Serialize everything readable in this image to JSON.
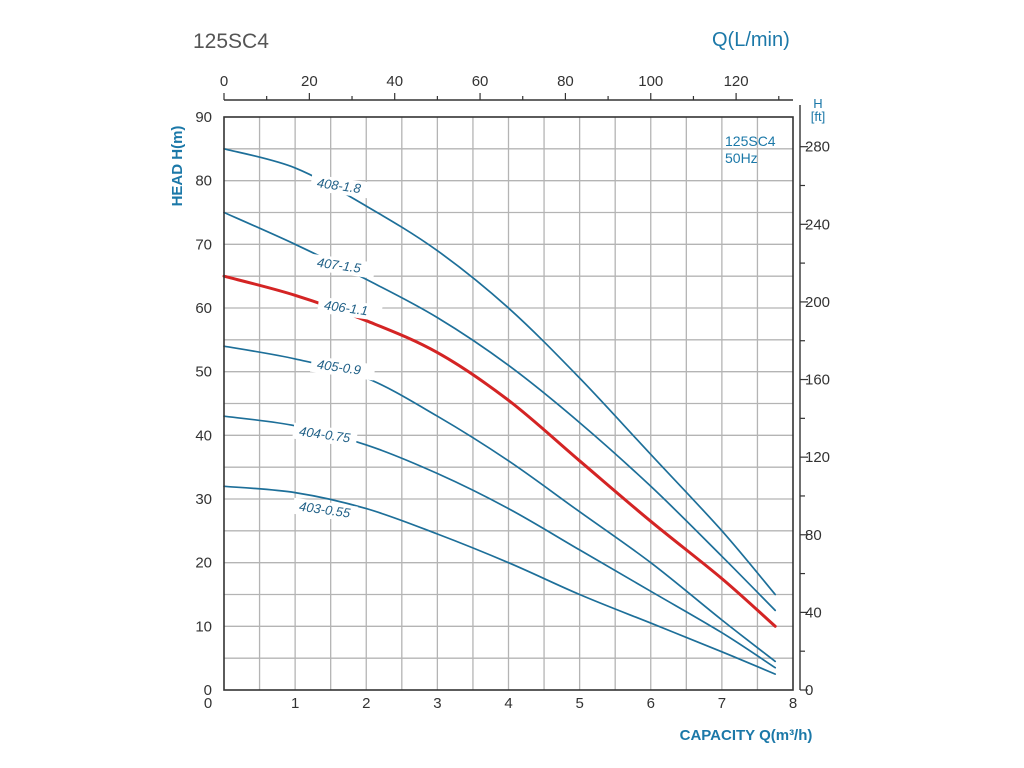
{
  "chart_data": {
    "type": "line",
    "title": "125SC4",
    "top_axis_label": "Q(L/min)",
    "top_ticks": [
      "0",
      "20",
      "40",
      "60",
      "80",
      "100",
      "120"
    ],
    "top_range": [
      0,
      133.33
    ],
    "left_axis_label": "HEAD H(m)",
    "left_ticks": [
      "0",
      "10",
      "20",
      "30",
      "40",
      "50",
      "60",
      "70",
      "80",
      "90"
    ],
    "ylim": [
      0,
      90
    ],
    "right_axis_label_line1": "H",
    "right_axis_label_line2": "[ft]",
    "right_ticks": [
      "0",
      "40",
      "80",
      "120",
      "160",
      "200",
      "240",
      "280"
    ],
    "right_range_ft": [
      0,
      295.3
    ],
    "xlabel": "CAPACITY Q(m³/h)",
    "x_ticks": [
      "0",
      "1",
      "2",
      "3",
      "4",
      "5",
      "6",
      "7",
      "8"
    ],
    "xlim": [
      0,
      8
    ],
    "inset_line1": "125SC4",
    "inset_line2": "50Hz",
    "grid": true,
    "series": [
      {
        "name": "403-0.55",
        "color": "#1d6f99",
        "x": [
          0,
          1,
          2,
          3,
          4,
          5,
          6,
          7,
          7.75
        ],
        "y": [
          32,
          31,
          28.5,
          24.5,
          20,
          15,
          10.5,
          6,
          2.5
        ]
      },
      {
        "name": "404-0.75",
        "color": "#1d6f99",
        "x": [
          0,
          1,
          2,
          3,
          4,
          5,
          6,
          7,
          7.75
        ],
        "y": [
          43,
          41.5,
          38.5,
          34,
          28.5,
          22,
          15.5,
          9,
          3.5
        ]
      },
      {
        "name": "405-0.9",
        "color": "#1d6f99",
        "x": [
          0,
          1,
          2,
          3,
          4,
          5,
          6,
          7,
          7.75
        ],
        "y": [
          54,
          52,
          49,
          43,
          36,
          28,
          20,
          11,
          4.5
        ]
      },
      {
        "name": "406-1.1",
        "color": "#d42424",
        "x": [
          0,
          1,
          2,
          3,
          4,
          5,
          6,
          7,
          7.75
        ],
        "y": [
          65,
          62,
          58,
          53,
          45.5,
          36,
          26.5,
          17.5,
          10
        ]
      },
      {
        "name": "407-1.5",
        "color": "#1d6f99",
        "x": [
          0,
          1,
          2,
          3,
          4,
          5,
          6,
          7,
          7.75
        ],
        "y": [
          75,
          70,
          64.5,
          58.5,
          51,
          42,
          32,
          21,
          12.5
        ]
      },
      {
        "name": "408-1.8",
        "color": "#1d6f99",
        "x": [
          0,
          1,
          2,
          3,
          4,
          5,
          6,
          7,
          7.75
        ],
        "y": [
          85,
          82,
          76,
          69,
          60,
          49,
          37,
          25,
          15
        ]
      }
    ]
  }
}
